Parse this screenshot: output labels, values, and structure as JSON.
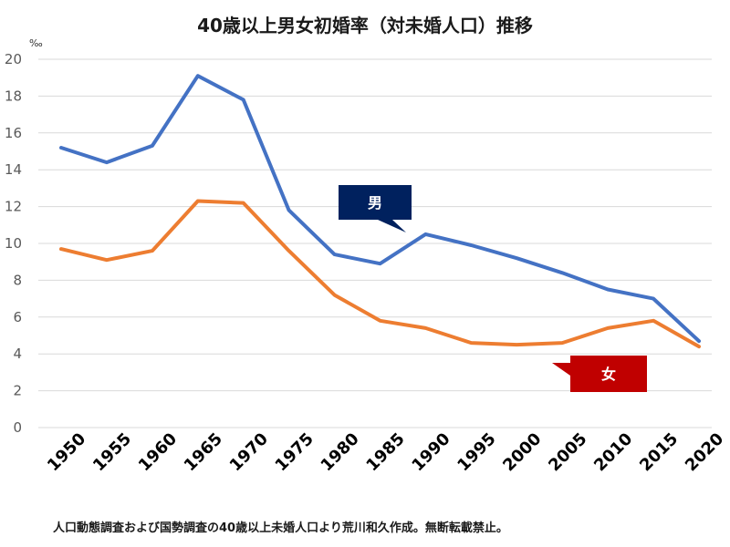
{
  "chart_data": {
    "type": "line",
    "title": "40歳以上男女初婚率（対未婚人口）推移",
    "ylabel": "‰",
    "xlabel": "",
    "ylim": [
      0,
      20
    ],
    "yticks": [
      0,
      2,
      4,
      6,
      8,
      10,
      12,
      14,
      16,
      18,
      20
    ],
    "grid": true,
    "categories": [
      "1950",
      "1955",
      "1960",
      "1965",
      "1970",
      "1975",
      "1980",
      "1985",
      "1990",
      "1995",
      "2000",
      "2005",
      "2010",
      "2015",
      "2020"
    ],
    "series": [
      {
        "name": "男",
        "color": "#4472C4",
        "values": [
          15.2,
          14.4,
          15.3,
          19.1,
          17.8,
          11.8,
          9.4,
          8.9,
          10.5,
          9.9,
          9.2,
          8.4,
          7.5,
          7.0,
          4.7
        ]
      },
      {
        "name": "女",
        "color": "#ED7D31",
        "values": [
          9.7,
          9.1,
          9.6,
          12.3,
          12.2,
          9.6,
          7.2,
          5.8,
          5.4,
          4.6,
          4.5,
          4.6,
          5.4,
          5.8,
          4.4
        ]
      }
    ],
    "callouts": [
      {
        "label": "男",
        "series": 0,
        "bg": "#00215E"
      },
      {
        "label": "女",
        "series": 1,
        "bg": "#C00000"
      }
    ]
  },
  "footnote": "人口動態調査および国勢調査の40歳以上未婚人口より荒川和久作成。無断転載禁止。"
}
